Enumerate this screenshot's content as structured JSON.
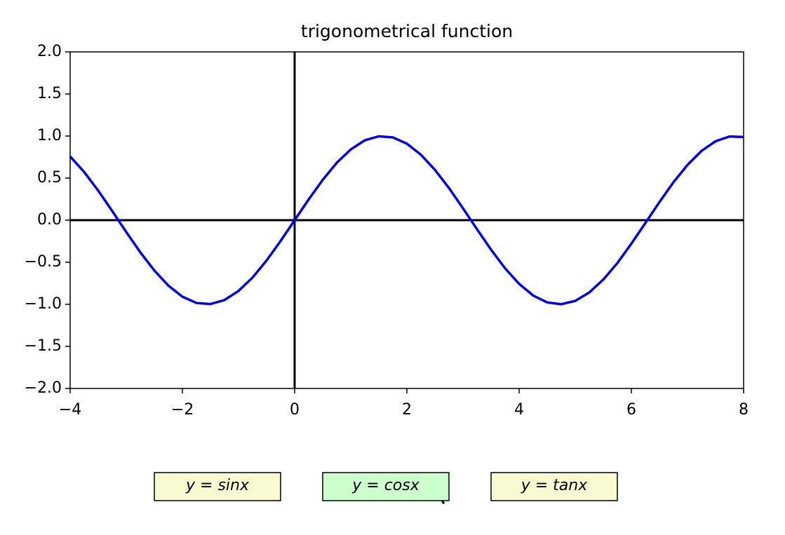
{
  "chart_data": {
    "type": "line",
    "title": "trigonometrical function",
    "x": [
      -4,
      -3.75,
      -3.5,
      -3.25,
      -3,
      -2.75,
      -2.5,
      -2.25,
      -2,
      -1.75,
      -1.5,
      -1.25,
      -1,
      -0.75,
      -0.5,
      -0.25,
      0,
      0.25,
      0.5,
      0.75,
      1,
      1.25,
      1.5,
      1.75,
      2,
      2.25,
      2.5,
      2.75,
      3,
      3.25,
      3.5,
      3.75,
      4,
      4.25,
      4.5,
      4.75,
      5,
      5.25,
      5.5,
      5.75,
      6,
      6.25,
      6.5,
      6.75,
      7,
      7.25,
      7.5,
      7.75,
      8
    ],
    "series": [
      {
        "color": "#0000ee",
        "values": [
          0.757,
          0.572,
          0.351,
          0.108,
          -0.141,
          -0.382,
          -0.598,
          -0.778,
          -0.909,
          -0.984,
          -0.997,
          -0.949,
          -0.841,
          -0.682,
          -0.479,
          -0.247,
          0,
          0.247,
          0.479,
          0.682,
          0.841,
          0.949,
          0.997,
          0.984,
          0.909,
          0.778,
          0.598,
          0.382,
          0.141,
          -0.108,
          -0.351,
          -0.572,
          -0.757,
          -0.895,
          -0.978,
          -0.999,
          -0.959,
          -0.859,
          -0.706,
          -0.51,
          -0.279,
          -0.033,
          0.215,
          0.451,
          0.657,
          0.823,
          0.938,
          0.995,
          0.989
        ]
      }
    ],
    "xlim": [
      -4,
      8
    ],
    "xticks": [
      {
        "value": -4,
        "label": "−4"
      },
      {
        "value": -2,
        "label": "−2"
      },
      0,
      2,
      4,
      6,
      8
    ],
    "ylim": [
      -2,
      2
    ],
    "yticks": [
      {
        "value": -2,
        "label": "−2.0"
      },
      {
        "value": -1.5,
        "label": "−1.5"
      },
      {
        "value": -1,
        "label": "−1.0"
      },
      {
        "value": -0.5,
        "label": "−0.5"
      },
      {
        "value": 0,
        "label": "0.0"
      },
      {
        "value": 0.5,
        "label": "0.5"
      },
      {
        "value": 1,
        "label": "1.0"
      },
      {
        "value": 1.5,
        "label": "1.5"
      },
      {
        "value": 2,
        "label": "2.0"
      }
    ],
    "axhline": 0,
    "axvline": 0,
    "buttons": [
      {
        "label": "y = sinx",
        "color": "#fafad2"
      },
      {
        "label": "y = cosx",
        "color": "#ccffcc"
      },
      {
        "label": "y = tanx",
        "color": "#fafad2"
      }
    ]
  }
}
